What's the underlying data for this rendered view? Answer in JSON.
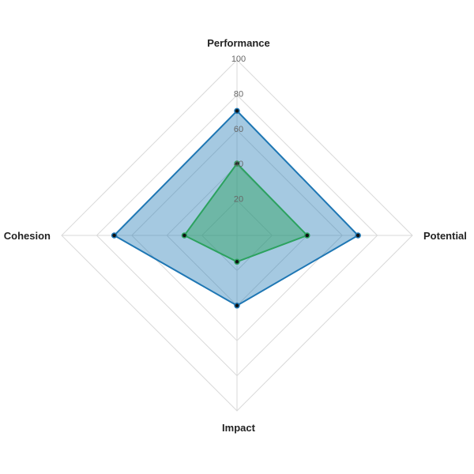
{
  "chart_data": {
    "type": "radar",
    "axes": [
      "Performance",
      "Potential",
      "Impact",
      "Cohesion"
    ],
    "rlim": [
      0,
      100
    ],
    "ticks": [
      20,
      40,
      60,
      80,
      100
    ],
    "grid": true,
    "series": [
      {
        "values": [
          71,
          69,
          40,
          70
        ],
        "color": "#1f77b4",
        "fill": "#1f77b4"
      },
      {
        "values": [
          41,
          40,
          15,
          30
        ],
        "color": "#2ca25f",
        "fill": "#2ca25f"
      }
    ]
  }
}
